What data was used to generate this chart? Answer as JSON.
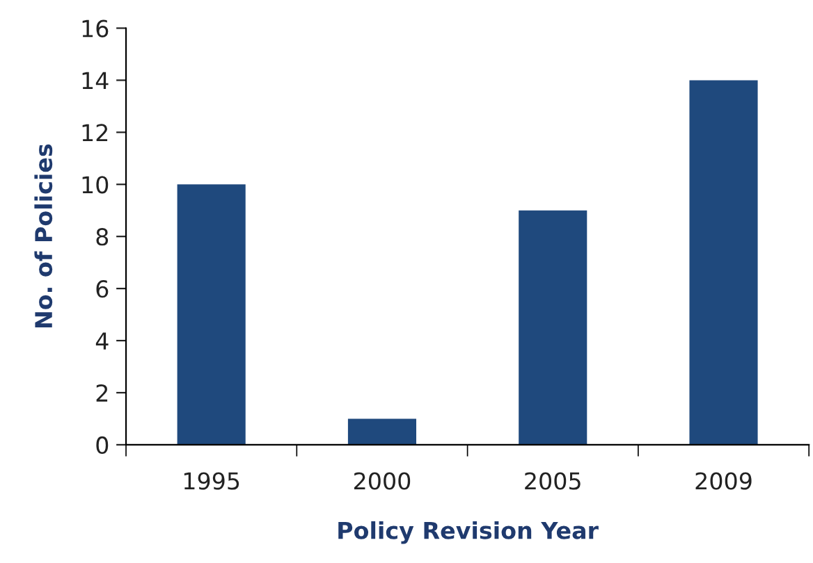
{
  "chart_data": {
    "type": "bar",
    "xlabel": "Policy Revision Year",
    "ylabel": "No. of Policies",
    "categories": [
      "1995",
      "2000",
      "2005",
      "2009"
    ],
    "values": [
      10,
      1,
      9,
      14
    ],
    "color": "#1f497d",
    "ylim": [
      0,
      16
    ],
    "yticks": [
      0,
      2,
      4,
      6,
      8,
      10,
      12,
      14,
      16
    ],
    "grid": false,
    "legend": false
  }
}
